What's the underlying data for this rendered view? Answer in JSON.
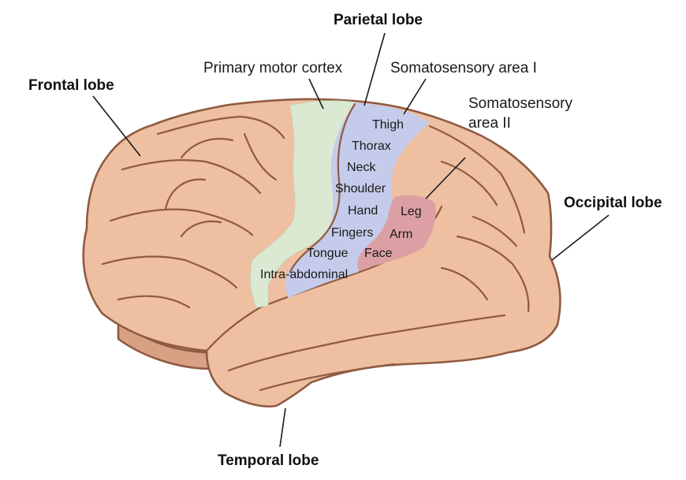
{
  "colors": {
    "brain": "#eebfa0",
    "brain_shadow": "#d9a184",
    "outline": "#8f5a42",
    "motor_cortex": "#dbe9d2",
    "somatosensory_1": "#c5cbea",
    "somatosensory_2": "#dca0a4"
  },
  "lobes": {
    "frontal": "Frontal lobe",
    "parietal": "Parietal lobe",
    "occipital": "Occipital lobe",
    "temporal": "Temporal lobe"
  },
  "areas": {
    "primary_motor": "Primary motor cortex",
    "somatosensory_1": "Somatosensory area I",
    "somatosensory_2_line1": "Somatosensory",
    "somatosensory_2_line2": "area II"
  },
  "somatosensory_1_regions": [
    "Thigh",
    "Thorax",
    "Neck",
    "Shoulder",
    "Hand",
    "Fingers",
    "Tongue",
    "Intra-abdominal"
  ],
  "somatosensory_2_regions": [
    "Leg",
    "Arm",
    "Face"
  ]
}
